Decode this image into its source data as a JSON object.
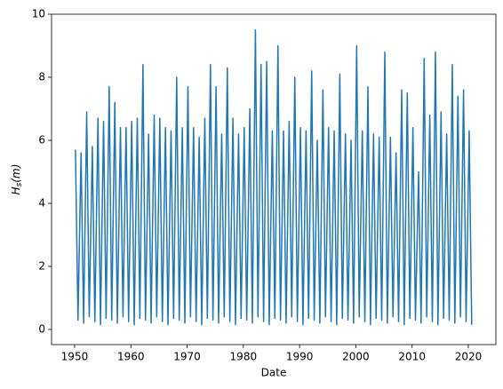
{
  "chart_data": {
    "type": "line",
    "xlabel": "Date",
    "ylabel": {
      "base": "H",
      "sub": "s",
      "rest": "(m)"
    },
    "color": "#1f77b4",
    "xlim": [
      1945.9,
      2024.9
    ],
    "xticks": [
      1950,
      1960,
      1970,
      1980,
      1990,
      2000,
      2010,
      2020
    ],
    "ylim": [
      -0.48,
      10
    ],
    "yticks": [
      0,
      2,
      4,
      6,
      8,
      10
    ],
    "x": [
      1950.15,
      1950.6,
      1951.15,
      1951.6,
      1952.15,
      1952.6,
      1953.15,
      1953.6,
      1954.15,
      1954.6,
      1955.15,
      1955.6,
      1956.15,
      1956.6,
      1957.15,
      1957.6,
      1958.15,
      1958.6,
      1959.15,
      1959.6,
      1960.15,
      1960.6,
      1961.15,
      1961.6,
      1962.15,
      1962.6,
      1963.15,
      1963.6,
      1964.15,
      1964.6,
      1965.15,
      1965.6,
      1966.15,
      1966.6,
      1967.15,
      1967.6,
      1968.15,
      1968.6,
      1969.15,
      1969.6,
      1970.15,
      1970.6,
      1971.15,
      1971.6,
      1972.15,
      1972.6,
      1973.15,
      1973.6,
      1974.15,
      1974.6,
      1975.15,
      1975.6,
      1976.15,
      1976.6,
      1977.15,
      1977.6,
      1978.15,
      1978.6,
      1979.15,
      1979.6,
      1980.15,
      1980.6,
      1981.15,
      1981.6,
      1982.15,
      1982.6,
      1983.15,
      1983.6,
      1984.15,
      1984.6,
      1985.15,
      1985.6,
      1986.15,
      1986.6,
      1987.15,
      1987.6,
      1988.15,
      1988.6,
      1989.15,
      1989.6,
      1990.15,
      1990.6,
      1991.15,
      1991.6,
      1992.15,
      1992.6,
      1993.15,
      1993.6,
      1994.15,
      1994.6,
      1995.15,
      1995.6,
      1996.15,
      1996.6,
      1997.15,
      1997.6,
      1998.15,
      1998.6,
      1999.15,
      1999.6,
      2000.15,
      2000.6,
      2001.15,
      2001.6,
      2002.15,
      2002.6,
      2003.15,
      2003.6,
      2004.15,
      2004.6,
      2005.15,
      2005.6,
      2006.15,
      2006.6,
      2007.15,
      2007.6,
      2008.15,
      2008.6,
      2009.15,
      2009.6,
      2010.15,
      2010.6,
      2011.15,
      2011.6,
      2012.15,
      2012.6,
      2013.15,
      2013.6,
      2014.15,
      2014.6,
      2015.15,
      2015.6,
      2016.15,
      2016.6,
      2017.15,
      2017.6,
      2018.15,
      2018.6,
      2019.15,
      2019.6,
      2020.15,
      2020.6
    ],
    "values": [
      5.7,
      0.3,
      5.6,
      0.2,
      6.9,
      0.4,
      5.8,
      0.25,
      6.7,
      0.15,
      6.6,
      0.35,
      7.7,
      0.3,
      7.2,
      0.2,
      6.4,
      0.4,
      6.4,
      0.25,
      6.6,
      0.15,
      6.7,
      0.35,
      8.4,
      0.3,
      6.2,
      0.2,
      6.8,
      0.4,
      6.7,
      0.25,
      6.4,
      0.15,
      6.3,
      0.35,
      8.0,
      0.3,
      6.4,
      0.2,
      7.7,
      0.4,
      6.4,
      0.25,
      6.1,
      0.15,
      6.7,
      0.35,
      8.4,
      0.3,
      7.7,
      0.2,
      6.2,
      0.4,
      8.3,
      0.25,
      6.7,
      0.15,
      6.2,
      0.35,
      6.4,
      0.3,
      7.0,
      0.2,
      9.5,
      0.4,
      8.4,
      0.25,
      8.5,
      0.15,
      6.3,
      0.35,
      9.0,
      0.3,
      6.3,
      0.2,
      6.6,
      0.4,
      8.0,
      0.25,
      6.4,
      0.15,
      6.3,
      0.35,
      8.2,
      0.3,
      6.0,
      0.2,
      7.6,
      0.4,
      6.4,
      0.25,
      6.3,
      0.15,
      8.1,
      0.35,
      6.2,
      0.3,
      6.0,
      0.2,
      9.0,
      0.4,
      6.3,
      0.25,
      7.7,
      0.15,
      6.2,
      0.35,
      6.1,
      0.3,
      8.8,
      0.2,
      6.1,
      0.4,
      5.6,
      0.25,
      7.6,
      0.15,
      7.5,
      0.35,
      6.4,
      0.3,
      5.0,
      0.2,
      8.6,
      0.4,
      6.8,
      0.25,
      8.8,
      0.15,
      6.9,
      0.35,
      6.2,
      0.3,
      8.4,
      0.2,
      7.4,
      0.4,
      7.6,
      0.25,
      6.3,
      0.15
    ]
  }
}
